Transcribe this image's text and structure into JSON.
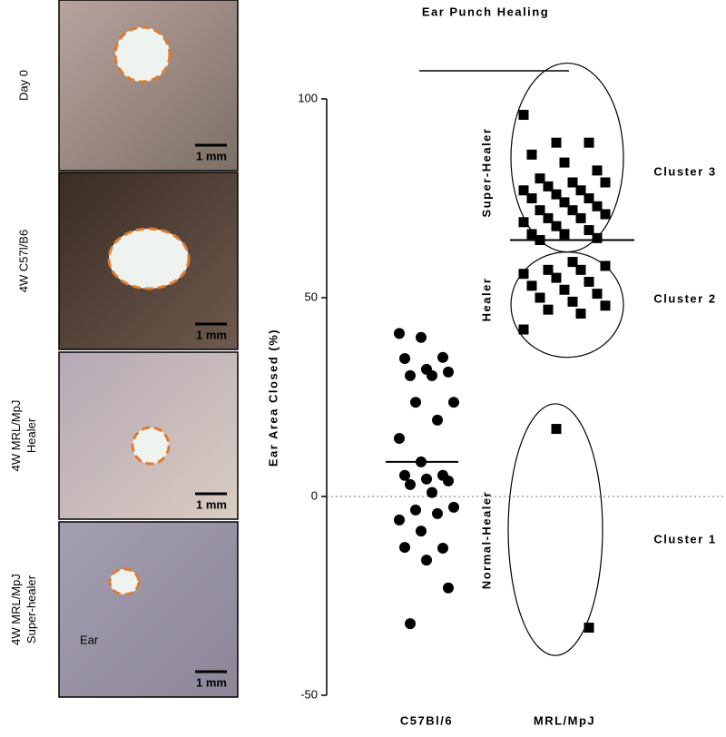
{
  "panels": [
    {
      "label_lines": [
        "Day 0"
      ],
      "scale": "1 mm"
    },
    {
      "label_lines": [
        "4W C57l/B6"
      ],
      "scale": "1 mm"
    },
    {
      "label_lines": [
        "4W MRL/MpJ",
        "Healer"
      ],
      "scale": "1 mm"
    },
    {
      "label_lines": [
        "4W MRL/MpJ",
        "Super-healer"
      ],
      "scale": "1 mm",
      "note": "Ear"
    }
  ],
  "chart_data": {
    "type": "scatter",
    "title": "Ear Punch Healing",
    "y_label": "Ear Area Closed (%)",
    "categories": [
      "C57Bl/6",
      "MRL/MpJ"
    ],
    "series": [
      {
        "color": "#000000",
        "marker": "circle",
        "values": [
          41,
          40,
          35,
          34.7,
          32,
          31.3,
          30.4,
          30.4,
          23.7,
          23.7,
          19.2,
          14.6,
          8.7,
          5.3,
          5.3,
          4.4,
          3.9,
          3,
          1,
          -2.7,
          -3.4,
          -4.3,
          -5.9,
          -8.7,
          -13,
          -12.8,
          -16,
          -23,
          -32
        ]
      },
      {
        "color": "#000000",
        "marker": "square",
        "values": [
          96,
          89,
          89,
          86,
          84,
          82,
          80,
          79,
          79,
          78,
          77,
          77,
          76,
          75,
          75,
          74,
          73,
          72,
          72,
          71,
          70,
          70,
          69,
          68,
          67,
          66,
          66,
          65,
          64.5,
          59,
          58,
          57,
          57,
          56,
          55,
          54,
          53,
          52,
          51,
          50,
          49,
          48,
          47,
          46,
          42,
          17,
          -33
        ]
      }
    ],
    "group_lines": [
      8.7,
      64.5
    ],
    "clusters": [
      {
        "name": "Cluster 3",
        "label": "Super-Healer",
        "range": [
          61.5,
          109
        ]
      },
      {
        "name": "Cluster 2",
        "label": "Healer",
        "range": [
          35,
          61.5
        ]
      },
      {
        "name": "Cluster 1",
        "label": "Normal-Healer",
        "range": [
          -40,
          23.3
        ]
      }
    ],
    "ylim": [
      -50,
      100
    ],
    "yticks": [
      -50,
      0,
      50,
      100
    ],
    "zero_line": true
  }
}
